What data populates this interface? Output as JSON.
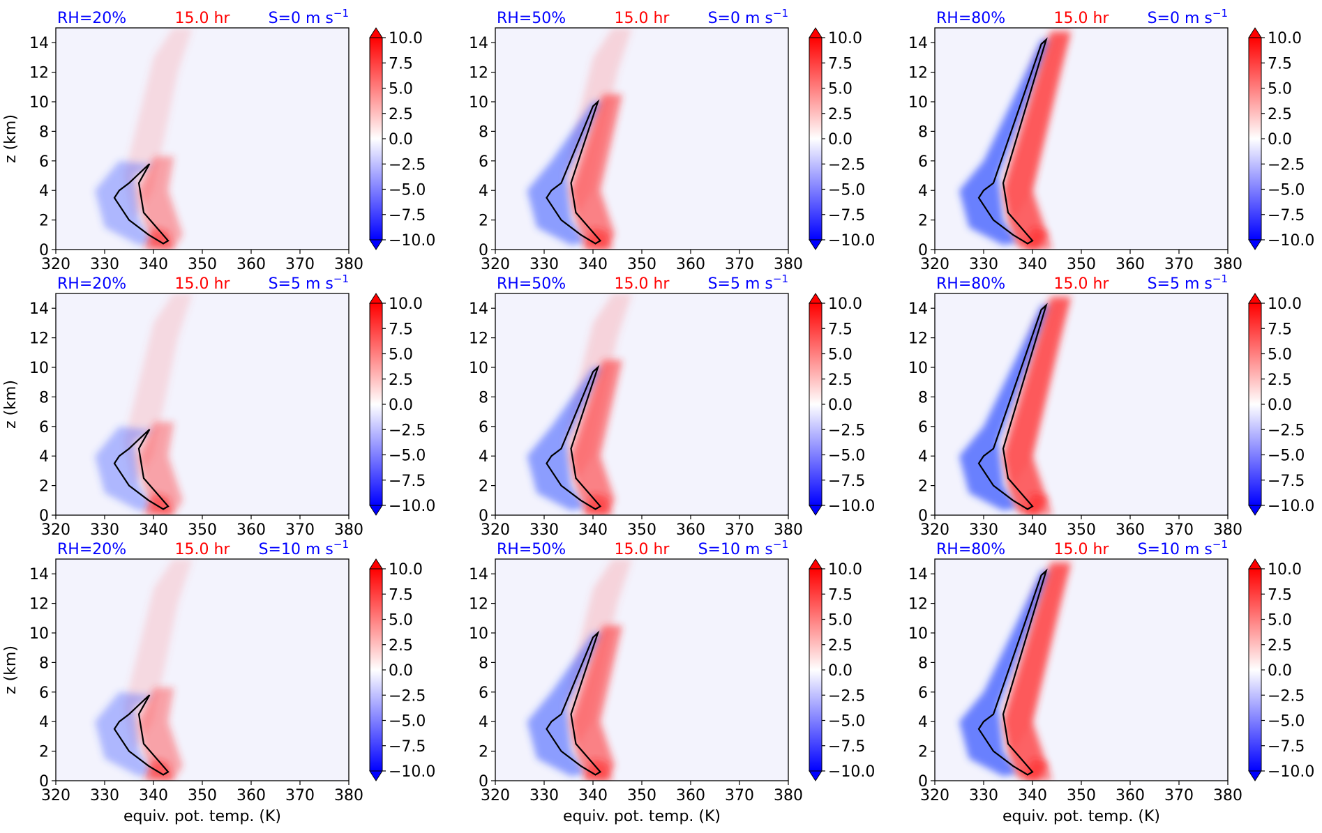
{
  "figure": {
    "time_label": "15.0 hr",
    "colors": {
      "rh_label": "#0000ff",
      "time_label": "#ff0000",
      "shear_label": "#0000ff",
      "contour": "#000000",
      "background": "#f3f3fd"
    },
    "shared_axes": {
      "xlabel": "equiv. pot. temp. (K)",
      "ylabel": "z (km)",
      "xlim": [
        320,
        380
      ],
      "ylim": [
        0,
        15
      ],
      "xticks": [
        "320",
        "330",
        "340",
        "350",
        "360",
        "370",
        "380"
      ],
      "yticks": [
        "0",
        "2",
        "4",
        "6",
        "8",
        "10",
        "12",
        "14"
      ]
    },
    "colorbar": {
      "colormap": "bwr",
      "range": [
        -10.0,
        10.0
      ],
      "extend": "both",
      "ticks": [
        "10.0",
        "7.5",
        "5.0",
        "2.5",
        "0.0",
        "−2.5",
        "−5.0",
        "−7.5",
        "−10.0"
      ]
    }
  },
  "chart_data": [
    {
      "type": "heatmap",
      "row": 0,
      "col": 0,
      "rh_label": "RH=20%",
      "time_label": "15.0 hr",
      "shear_label": "S=0 m s",
      "shear_exp": "−1",
      "xlim": [
        320,
        380
      ],
      "ylim": [
        0,
        15
      ],
      "ylabel": "z (km)",
      "xlabel": "",
      "rh": 20,
      "shear": 0
    },
    {
      "type": "heatmap",
      "row": 0,
      "col": 1,
      "rh_label": "RH=50%",
      "time_label": "15.0 hr",
      "shear_label": "S=0 m s",
      "shear_exp": "−1",
      "xlim": [
        320,
        380
      ],
      "ylim": [
        0,
        15
      ],
      "ylabel": "",
      "xlabel": "",
      "rh": 50,
      "shear": 0
    },
    {
      "type": "heatmap",
      "row": 0,
      "col": 2,
      "rh_label": "RH=80%",
      "time_label": "15.0 hr",
      "shear_label": "S=0 m s",
      "shear_exp": "−1",
      "xlim": [
        320,
        380
      ],
      "ylim": [
        0,
        15
      ],
      "ylabel": "",
      "xlabel": "",
      "rh": 80,
      "shear": 0
    },
    {
      "type": "heatmap",
      "row": 1,
      "col": 0,
      "rh_label": "RH=20%",
      "time_label": "15.0 hr",
      "shear_label": "S=5 m s",
      "shear_exp": "−1",
      "xlim": [
        320,
        380
      ],
      "ylim": [
        0,
        15
      ],
      "ylabel": "z (km)",
      "xlabel": "",
      "rh": 20,
      "shear": 5
    },
    {
      "type": "heatmap",
      "row": 1,
      "col": 1,
      "rh_label": "RH=50%",
      "time_label": "15.0 hr",
      "shear_label": "S=5 m s",
      "shear_exp": "−1",
      "xlim": [
        320,
        380
      ],
      "ylim": [
        0,
        15
      ],
      "ylabel": "",
      "xlabel": "",
      "rh": 50,
      "shear": 5
    },
    {
      "type": "heatmap",
      "row": 1,
      "col": 2,
      "rh_label": "RH=80%",
      "time_label": "15.0 hr",
      "shear_label": "S=5 m s",
      "shear_exp": "−1",
      "xlim": [
        320,
        380
      ],
      "ylim": [
        0,
        15
      ],
      "ylabel": "",
      "xlabel": "",
      "rh": 80,
      "shear": 5
    },
    {
      "type": "heatmap",
      "row": 2,
      "col": 0,
      "rh_label": "RH=20%",
      "time_label": "15.0 hr",
      "shear_label": "S=10 m s",
      "shear_exp": "−1",
      "xlim": [
        320,
        380
      ],
      "ylim": [
        0,
        15
      ],
      "ylabel": "z (km)",
      "xlabel": "equiv. pot. temp. (K)",
      "rh": 20,
      "shear": 10
    },
    {
      "type": "heatmap",
      "row": 2,
      "col": 1,
      "rh_label": "RH=50%",
      "time_label": "15.0 hr",
      "shear_label": "S=10 m s",
      "shear_exp": "−1",
      "xlim": [
        320,
        380
      ],
      "ylim": [
        0,
        15
      ],
      "ylabel": "",
      "xlabel": "equiv. pot. temp. (K)",
      "rh": 50,
      "shear": 10
    },
    {
      "type": "heatmap",
      "row": 2,
      "col": 2,
      "rh_label": "RH=80%",
      "time_label": "15.0 hr",
      "shear_label": "S=10 m s",
      "shear_exp": "−1",
      "xlim": [
        320,
        380
      ],
      "ylim": [
        0,
        15
      ],
      "ylabel": "",
      "xlabel": "equiv. pot. temp. (K)",
      "rh": 80,
      "shear": 10
    }
  ]
}
